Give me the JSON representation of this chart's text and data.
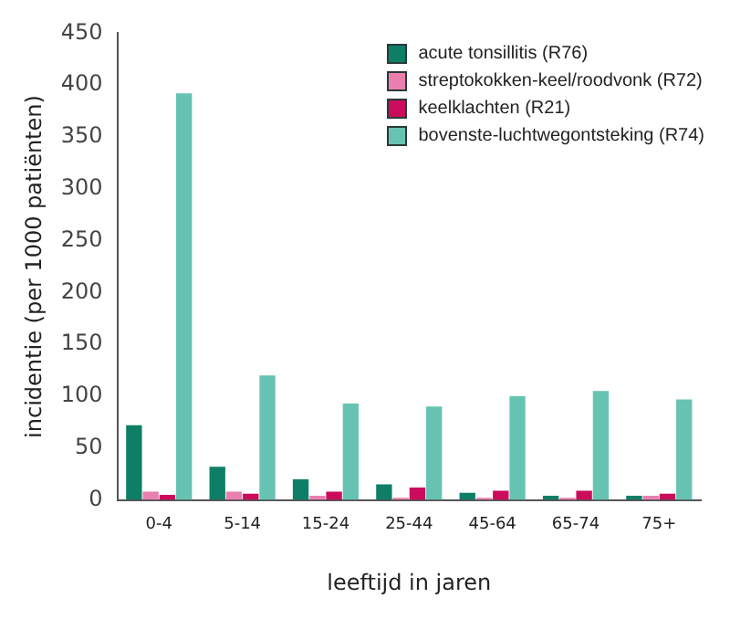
{
  "chart_data": {
    "type": "bar",
    "xlabel": "leeftijd in jaren",
    "ylabel": "incidentie (per 1000 patiënten)",
    "categories": [
      "0-4",
      "5-14",
      "15-24",
      "25-44",
      "45-64",
      "65-74",
      "75+"
    ],
    "series": [
      {
        "name": "acute tonsillitis (R76)",
        "color": "#0e7f66",
        "values": [
          72,
          32,
          20,
          15,
          7,
          4,
          4
        ]
      },
      {
        "name": "streptokokken-keel/roodvonk (R72)",
        "color": "#e97fae",
        "values": [
          8,
          8,
          4,
          2,
          2,
          2,
          4
        ]
      },
      {
        "name": "keelklachten (R21)",
        "color": "#cc0b5c",
        "values": [
          5,
          6,
          8,
          12,
          9,
          9,
          6
        ]
      },
      {
        "name": "bovenste-luchtwegontsteking (R74)",
        "color": "#66c3b2",
        "values": [
          392,
          120,
          93,
          90,
          100,
          105,
          97
        ]
      }
    ],
    "ylim": [
      0,
      450
    ],
    "yticks": [
      0,
      50,
      100,
      150,
      200,
      250,
      300,
      350,
      400,
      450
    ],
    "grid": false,
    "legend": "top right"
  }
}
